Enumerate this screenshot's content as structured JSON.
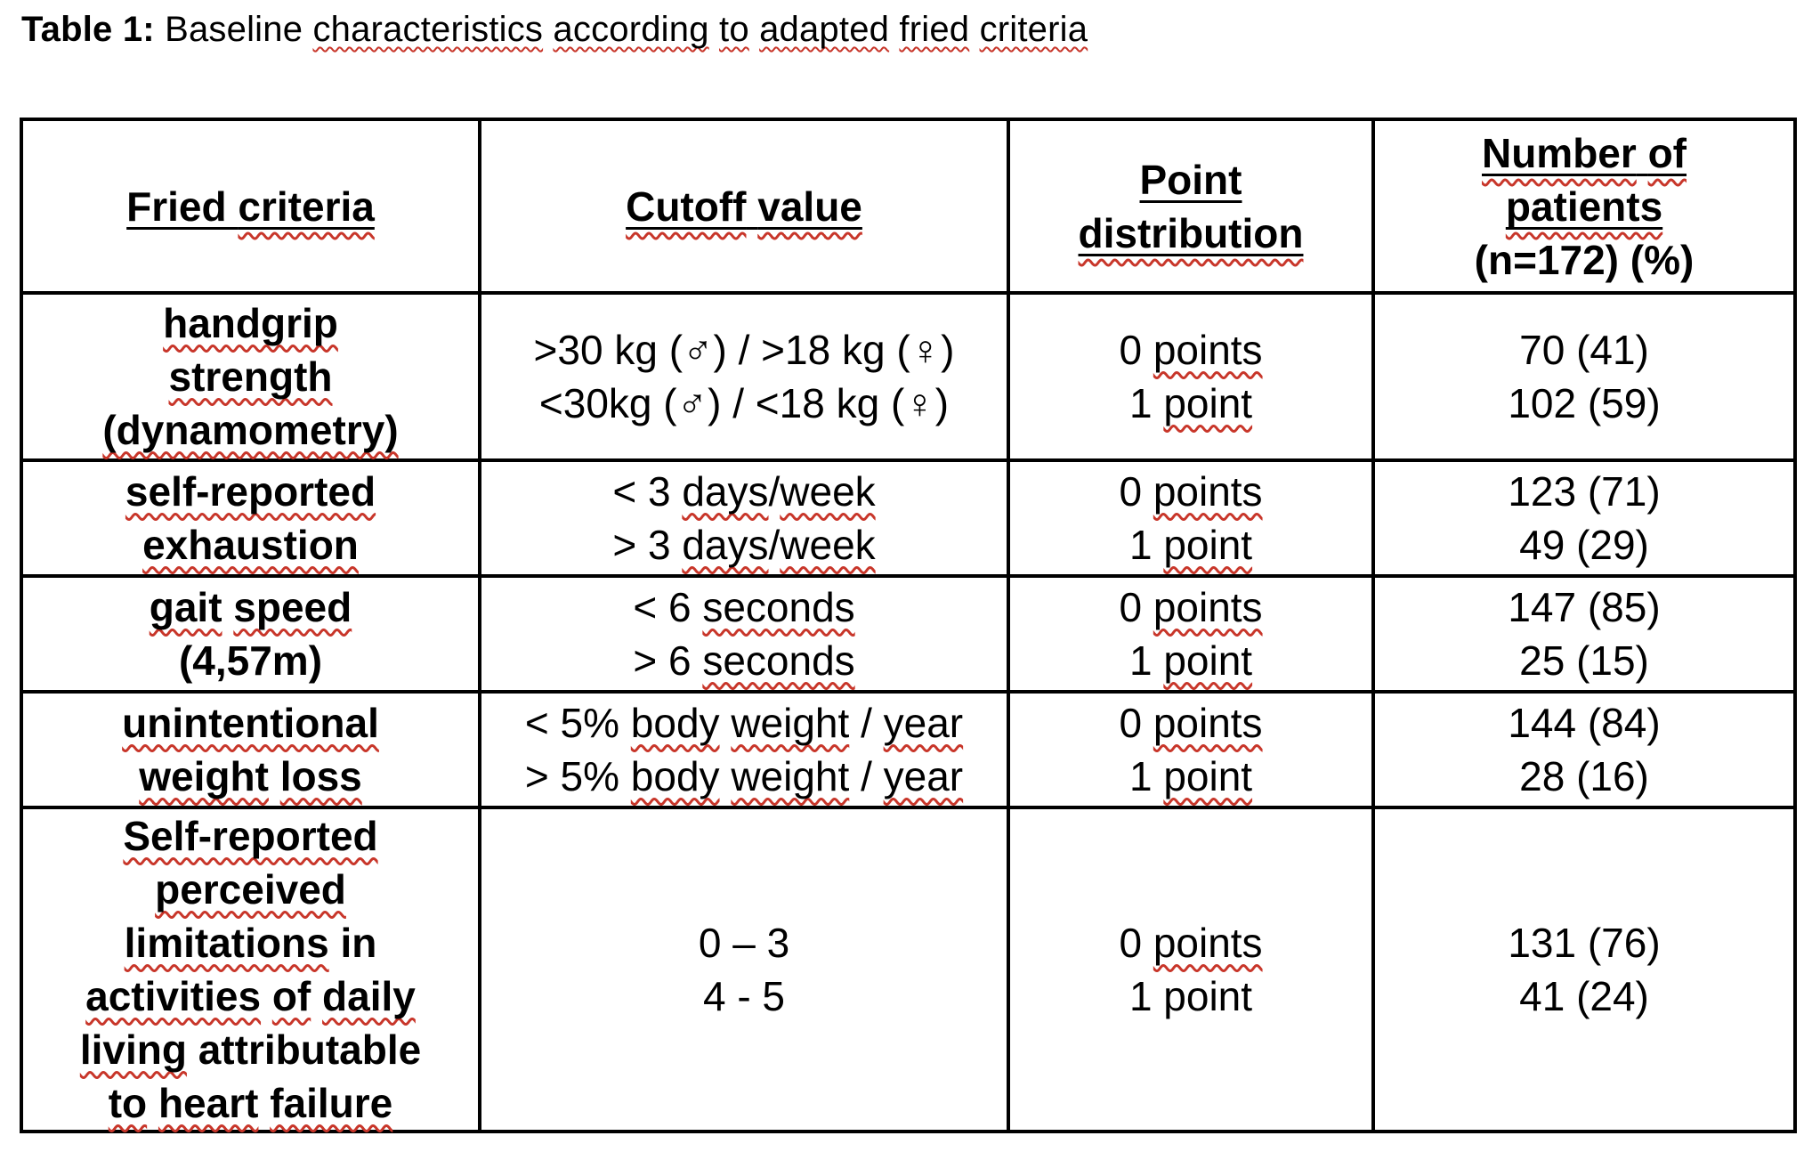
{
  "colors": {
    "text": "#000000",
    "border": "#000000",
    "squiggle_red": "#c8362a",
    "background": "#ffffff"
  },
  "title": {
    "plain_text": "Table 1: Baseline characteristics according to adapted fried criteria",
    "segments": [
      {
        "t": "Table 1:",
        "b": 1
      },
      {
        "t": " Baseline "
      },
      {
        "t": "characteristics",
        "q": 1
      },
      {
        "t": " "
      },
      {
        "t": "according",
        "q": 1
      },
      {
        "t": " "
      },
      {
        "t": "to",
        "q": 1
      },
      {
        "t": " "
      },
      {
        "t": "adapted",
        "q": 1
      },
      {
        "t": " "
      },
      {
        "t": "fried",
        "q": 1
      },
      {
        "t": " "
      },
      {
        "t": "criteria",
        "q": 1
      }
    ]
  },
  "table": {
    "column_headers_plain": [
      "Fried criteria",
      "Cutoff value",
      "Point distribution",
      "Number of patients (n=172) (%)"
    ],
    "header": [
      {
        "lines": [
          [
            {
              "t": "Fried ",
              "u": 1
            },
            {
              "t": "criteria",
              "u": 1,
              "q": 1
            }
          ]
        ]
      },
      {
        "lines": [
          [
            {
              "t": "Cutoff",
              "u": 1,
              "q": 1
            },
            {
              "t": " ",
              "u": 1
            },
            {
              "t": "value",
              "u": 1,
              "q": 1
            }
          ]
        ]
      },
      {
        "lines": [
          [
            {
              "t": "Point",
              "u": 1
            }
          ],
          [
            {
              "t": "distribution",
              "u": 1,
              "q": 1
            }
          ]
        ]
      },
      {
        "lines": [
          [
            {
              "t": "Number",
              "u": 1,
              "q": 1
            },
            {
              "t": " ",
              "u": 1
            },
            {
              "t": "of",
              "u": 1,
              "q": 1
            }
          ],
          [
            {
              "t": "patients",
              "u": 1,
              "q": 1
            }
          ],
          [
            {
              "t": "(n=172) (%)"
            }
          ]
        ]
      }
    ],
    "rows": [
      {
        "criteria": [
          [
            {
              "t": "handgrip",
              "q": 1
            }
          ],
          [
            {
              "t": "strength",
              "q": 1
            }
          ],
          [
            {
              "t": "(dynamometry)",
              "q": 1
            }
          ]
        ],
        "cutoff": [
          [
            {
              "t": ">30 kg (♂) / >18 kg (♀)"
            }
          ],
          [
            {
              "t": "<30kg (♂) / <18 kg (♀)"
            }
          ]
        ],
        "points": [
          [
            {
              "t": "0 "
            },
            {
              "t": "points",
              "q": 1
            }
          ],
          [
            {
              "t": "1 "
            },
            {
              "t": "point",
              "q": 1
            }
          ]
        ],
        "patients": [
          [
            {
              "t": "70 (41)"
            }
          ],
          [
            {
              "t": "102 (59)"
            }
          ]
        ]
      },
      {
        "criteria": [
          [
            {
              "t": "self-reported",
              "q": 1
            }
          ],
          [
            {
              "t": "exhaustion",
              "q": 1
            }
          ]
        ],
        "cutoff": [
          [
            {
              "t": "< 3 "
            },
            {
              "t": "days",
              "q": 1
            },
            {
              "t": "/"
            },
            {
              "t": "week",
              "q": 1
            }
          ],
          [
            {
              "t": "> 3 "
            },
            {
              "t": "days",
              "q": 1
            },
            {
              "t": "/"
            },
            {
              "t": "week",
              "q": 1
            }
          ]
        ],
        "points": [
          [
            {
              "t": "0 "
            },
            {
              "t": "points",
              "q": 1
            }
          ],
          [
            {
              "t": "1 "
            },
            {
              "t": "point",
              "q": 1
            }
          ]
        ],
        "patients": [
          [
            {
              "t": "123 (71)"
            }
          ],
          [
            {
              "t": "49 (29)"
            }
          ]
        ]
      },
      {
        "criteria": [
          [
            {
              "t": "gait",
              "q": 1
            },
            {
              "t": " "
            },
            {
              "t": "speed",
              "q": 1
            }
          ],
          [
            {
              "t": "(4,57m)"
            }
          ]
        ],
        "cutoff": [
          [
            {
              "t": "< 6 "
            },
            {
              "t": "seconds",
              "q": 1
            }
          ],
          [
            {
              "t": "> 6 "
            },
            {
              "t": "seconds",
              "q": 1
            }
          ]
        ],
        "points": [
          [
            {
              "t": "0 "
            },
            {
              "t": "points",
              "q": 1
            }
          ],
          [
            {
              "t": "1 "
            },
            {
              "t": "point",
              "q": 1
            }
          ]
        ],
        "patients": [
          [
            {
              "t": "147 (85)"
            }
          ],
          [
            {
              "t": "25 (15)"
            }
          ]
        ]
      },
      {
        "criteria": [
          [
            {
              "t": "unintentional",
              "q": 1
            }
          ],
          [
            {
              "t": "weight",
              "q": 1
            },
            {
              "t": " "
            },
            {
              "t": "loss",
              "q": 1
            }
          ]
        ],
        "cutoff": [
          [
            {
              "t": "< 5% "
            },
            {
              "t": "body",
              "q": 1
            },
            {
              "t": " "
            },
            {
              "t": "weight",
              "q": 1
            },
            {
              "t": " / "
            },
            {
              "t": "year",
              "q": 1
            }
          ],
          [
            {
              "t": "> 5% "
            },
            {
              "t": "body",
              "q": 1
            },
            {
              "t": " "
            },
            {
              "t": "weight",
              "q": 1
            },
            {
              "t": " / "
            },
            {
              "t": "year",
              "q": 1
            }
          ]
        ],
        "points": [
          [
            {
              "t": "0 "
            },
            {
              "t": "points",
              "q": 1
            }
          ],
          [
            {
              "t": "1 "
            },
            {
              "t": "point",
              "q": 1
            }
          ]
        ],
        "patients": [
          [
            {
              "t": "144 (84)"
            }
          ],
          [
            {
              "t": "28 (16)"
            }
          ]
        ]
      },
      {
        "criteria": [
          [
            {
              "t": "Self-reported",
              "q": 1
            }
          ],
          [
            {
              "t": "perceived",
              "q": 1
            }
          ],
          [
            {
              "t": "limitations",
              "q": 1
            },
            {
              "t": " in"
            }
          ],
          [
            {
              "t": "activities",
              "q": 1
            },
            {
              "t": " "
            },
            {
              "t": "of",
              "q": 1
            },
            {
              "t": " "
            },
            {
              "t": "daily",
              "q": 1
            }
          ],
          [
            {
              "t": "living",
              "q": 1
            },
            {
              "t": " attributable"
            }
          ],
          [
            {
              "t": "to",
              "q": 1
            },
            {
              "t": " "
            },
            {
              "t": "heart",
              "q": 1
            },
            {
              "t": " "
            },
            {
              "t": "failure",
              "q": 1
            }
          ]
        ],
        "cutoff": [
          [
            {
              "t": "0 – 3"
            }
          ],
          [
            {
              "t": "4 - 5"
            }
          ]
        ],
        "points": [
          [
            {
              "t": "0 "
            },
            {
              "t": "points",
              "q": 1
            }
          ],
          [
            {
              "t": "1 point"
            }
          ]
        ],
        "patients": [
          [
            {
              "t": "131 (76)"
            }
          ],
          [
            {
              "t": "41 (24)"
            }
          ]
        ]
      }
    ]
  }
}
